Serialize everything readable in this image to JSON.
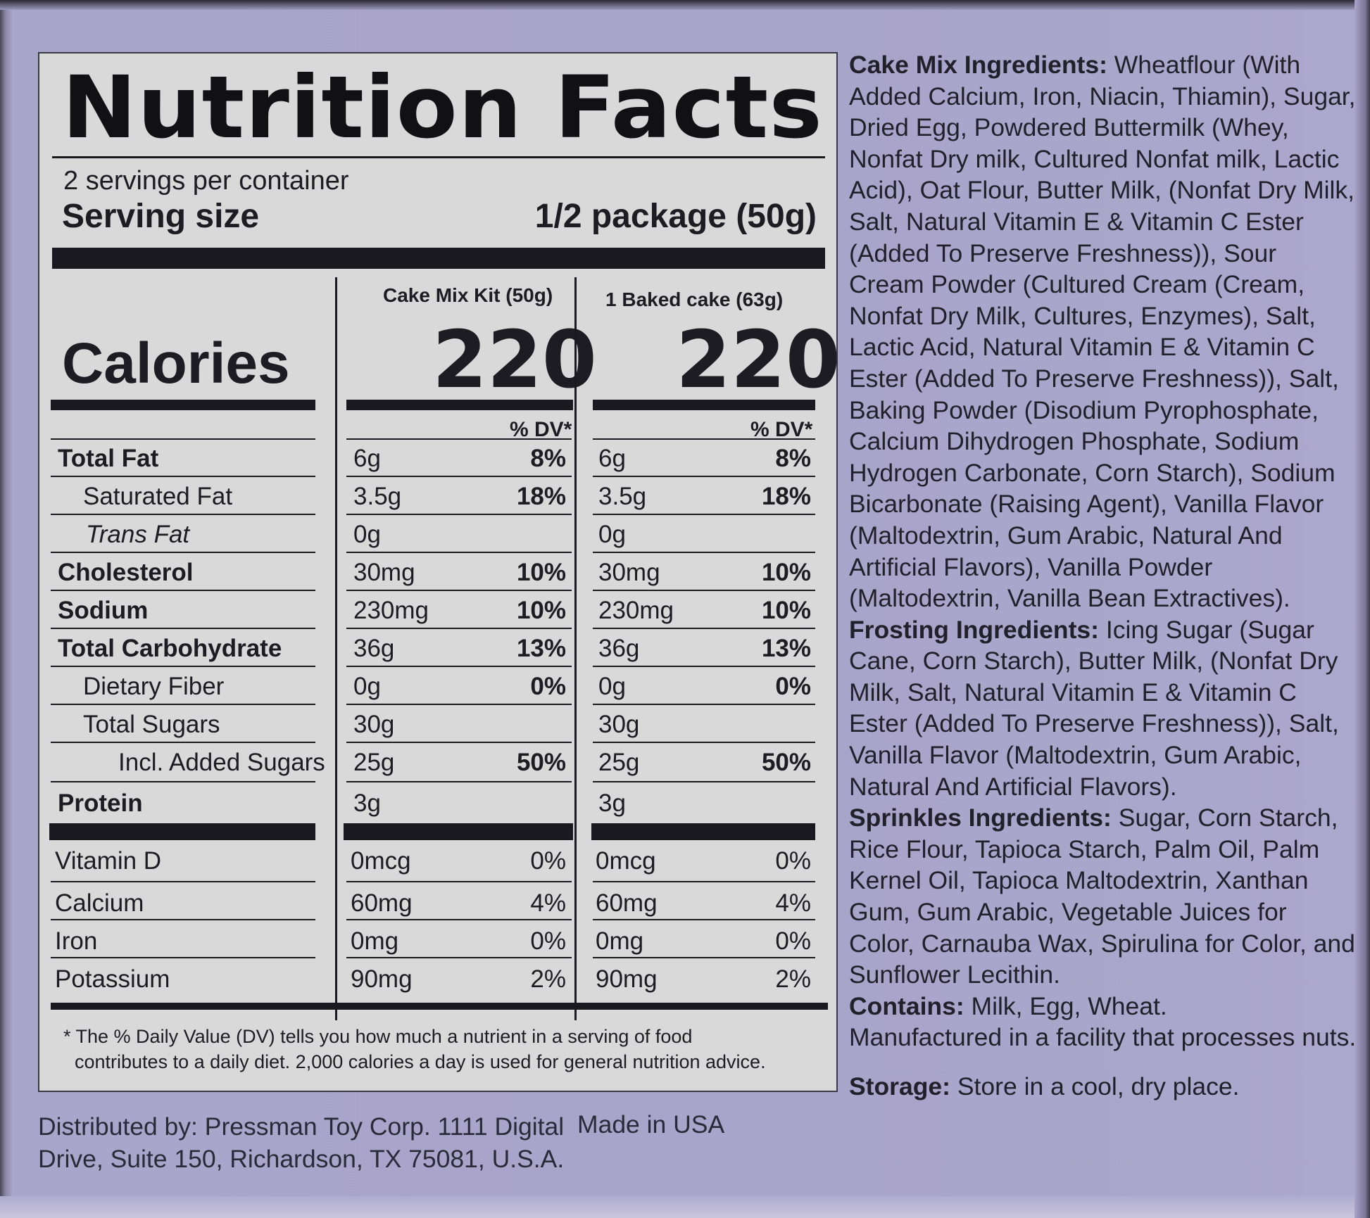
{
  "nutrition": {
    "title": "Nutrition Facts",
    "servings_per_container": "2 servings per container",
    "serving_size_label": "Serving size",
    "serving_size_value": "1/2 package (50g)",
    "calories_label": "Calories",
    "columns": [
      {
        "header": "Cake Mix Kit (50g)",
        "calories": "220",
        "dv_header": "% DV*"
      },
      {
        "header": "1 Baked cake (63g)",
        "calories": "220",
        "dv_header": "% DV*"
      }
    ],
    "rows": [
      {
        "label": "Total Fat",
        "col1_amount": "6g",
        "col1_dv": "8%",
        "col2_amount": "6g",
        "col2_dv": "8%"
      },
      {
        "label": "Saturated Fat",
        "col1_amount": "3.5g",
        "col1_dv": "18%",
        "col2_amount": "3.5g",
        "col2_dv": "18%"
      },
      {
        "label": "Trans Fat",
        "col1_amount": "0g",
        "col1_dv": "",
        "col2_amount": "0g",
        "col2_dv": ""
      },
      {
        "label": "Cholesterol",
        "col1_amount": "30mg",
        "col1_dv": "10%",
        "col2_amount": "30mg",
        "col2_dv": "10%"
      },
      {
        "label": "Sodium",
        "col1_amount": "230mg",
        "col1_dv": "10%",
        "col2_amount": "230mg",
        "col2_dv": "10%"
      },
      {
        "label": "Total Carbohydrate",
        "col1_amount": "36g",
        "col1_dv": "13%",
        "col2_amount": "36g",
        "col2_dv": "13%"
      },
      {
        "label": "Dietary Fiber",
        "col1_amount": "0g",
        "col1_dv": "0%",
        "col2_amount": "0g",
        "col2_dv": "0%"
      },
      {
        "label": "Total Sugars",
        "col1_amount": "30g",
        "col1_dv": "",
        "col2_amount": "30g",
        "col2_dv": ""
      },
      {
        "label": "Incl. Added Sugars",
        "col1_amount": "25g",
        "col1_dv": "50%",
        "col2_amount": "25g",
        "col2_dv": "50%"
      },
      {
        "label": "Protein",
        "col1_amount": "3g",
        "col1_dv": "",
        "col2_amount": "3g",
        "col2_dv": ""
      },
      {
        "label": "Vitamin D",
        "col1_amount": "0mcg",
        "col1_dv": "0%",
        "col2_amount": "0mcg",
        "col2_dv": "0%"
      },
      {
        "label": "Calcium",
        "col1_amount": "60mg",
        "col1_dv": "4%",
        "col2_amount": "60mg",
        "col2_dv": "4%"
      },
      {
        "label": "Iron",
        "col1_amount": "0mg",
        "col1_dv": "0%",
        "col2_amount": "0mg",
        "col2_dv": "0%"
      },
      {
        "label": "Potassium",
        "col1_amount": "90mg",
        "col1_dv": "2%",
        "col2_amount": "90mg",
        "col2_dv": "2%"
      }
    ],
    "footnote_line1": "* The % Daily Value (DV) tells you how much a nutrient in a serving of food",
    "footnote_line2": "contributes to a daily diet. 2,000 calories a day is used for general nutrition advice."
  },
  "ingredients": {
    "cake_label": "Cake Mix Ingredients:",
    "cake_text": " Wheatflour (With Added Calcium, Iron, Niacin, Thiamin), Sugar, Dried Egg, Powdered Buttermilk (Whey, Nonfat Dry milk, Cultured Nonfat milk, Lactic Acid), Oat Flour, Butter Milk, (Nonfat Dry Milk, Salt, Natural Vitamin E & Vitamin C Ester (Added To Preserve Freshness)), Sour Cream Powder (Cultured Cream (Cream, Nonfat Dry Milk, Cultures, Enzymes), Salt, Lactic Acid, Natural Vitamin E & Vitamin C Ester (Added To Preserve Freshness)), Salt, Baking Powder (Disodium Pyrophosphate, Calcium Dihydrogen Phosphate, Sodium Hydrogen Carbonate, Corn Starch), Sodium Bicarbonate (Raising Agent), Vanilla Flavor (Maltodextrin, Gum Arabic, Natural And Artificial Flavors), Vanilla Powder (Maltodextrin, Vanilla Bean Extractives).",
    "frosting_label": "Frosting Ingredients:",
    "frosting_text": " Icing Sugar (Sugar Cane, Corn Starch), Butter Milk, (Nonfat Dry Milk, Salt, Natural Vitamin E & Vitamin C Ester (Added To Preserve Freshness)), Salt, Vanilla Flavor (Maltodextrin, Gum Arabic, Natural And Artificial Flavors).",
    "sprinkles_label": "Sprinkles Ingredients:",
    "sprinkles_text": " Sugar, Corn Starch, Rice Flour, Tapioca Starch, Palm Oil, Palm Kernel Oil, Tapioca Maltodextrin, Xanthan Gum, Gum Arabic, Vegetable Juices for Color, Carnauba Wax, Spirulina for Color, and Sunflower Lecithin.",
    "contains_label": "Contains:",
    "contains_text": " Milk, Egg, Wheat.",
    "facility_text": "Manufactured in a facility that processes nuts.",
    "storage_label": "Storage:",
    "storage_text": " Store in a cool, dry place."
  },
  "distribution": {
    "line1": "Distributed by: Pressman Toy Corp. 1111 Digital",
    "line2": "Drive, Suite 150, Richardson, TX 75081, U.S.A.",
    "made_in": "Made in USA"
  },
  "colors": {
    "box_purple": "#a9a4c9",
    "panel_gray": "#d9d9da",
    "ink": "#1d1c22"
  }
}
